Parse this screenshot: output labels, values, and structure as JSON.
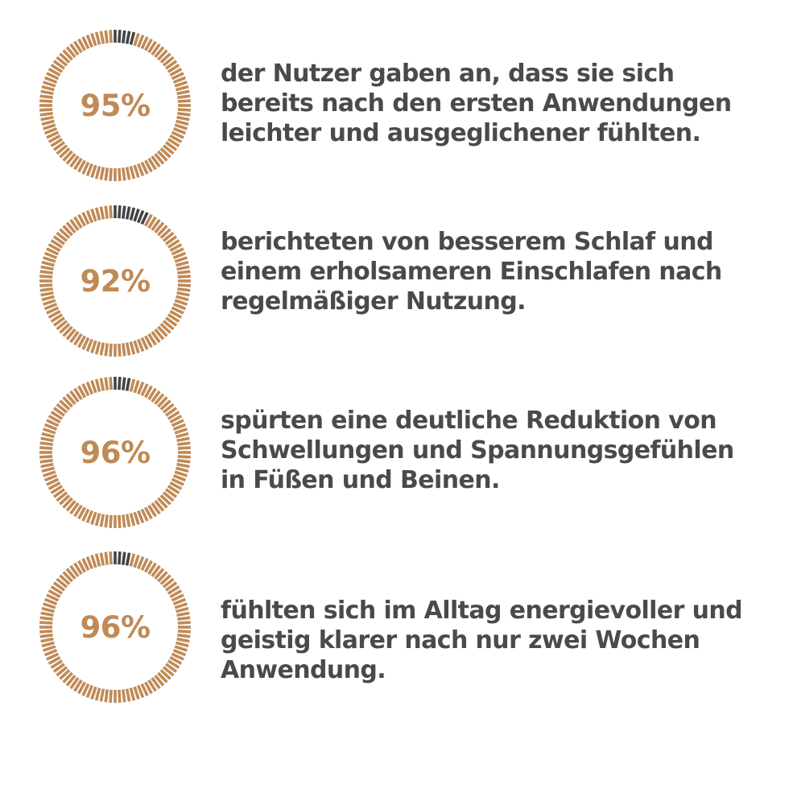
{
  "colors": {
    "accent": "#c08a56",
    "remainder": "#444444",
    "text": "#4a4a4a",
    "background": "#ffffff"
  },
  "chart_data": [
    {
      "type": "pie",
      "values": [
        95,
        5
      ],
      "value_label": "95%",
      "annotation_lines": [
        "der Nutzer gaben an, dass sie sich",
        "bereits nach den ersten Anwendungen",
        "leichter und ausgeglichener fühlten."
      ]
    },
    {
      "type": "pie",
      "values": [
        92,
        8
      ],
      "value_label": "92%",
      "annotation_lines": [
        "berichteten von besserem Schlaf und",
        "einem erholsameren Einschlafen nach",
        "regelmäßiger Nutzung."
      ]
    },
    {
      "type": "pie",
      "values": [
        96,
        4
      ],
      "value_label": "96%",
      "annotation_lines": [
        "spürten eine deutliche Reduktion von",
        "Schwellungen und Spannungsgefühlen",
        "in Füßen und Beinen."
      ]
    },
    {
      "type": "pie",
      "values": [
        96,
        4
      ],
      "value_label": "96%",
      "annotation_lines": [
        "fühlten sich im Alltag energievoller und",
        "geistig klarer nach nur zwei Wochen",
        "Anwendung."
      ]
    }
  ]
}
